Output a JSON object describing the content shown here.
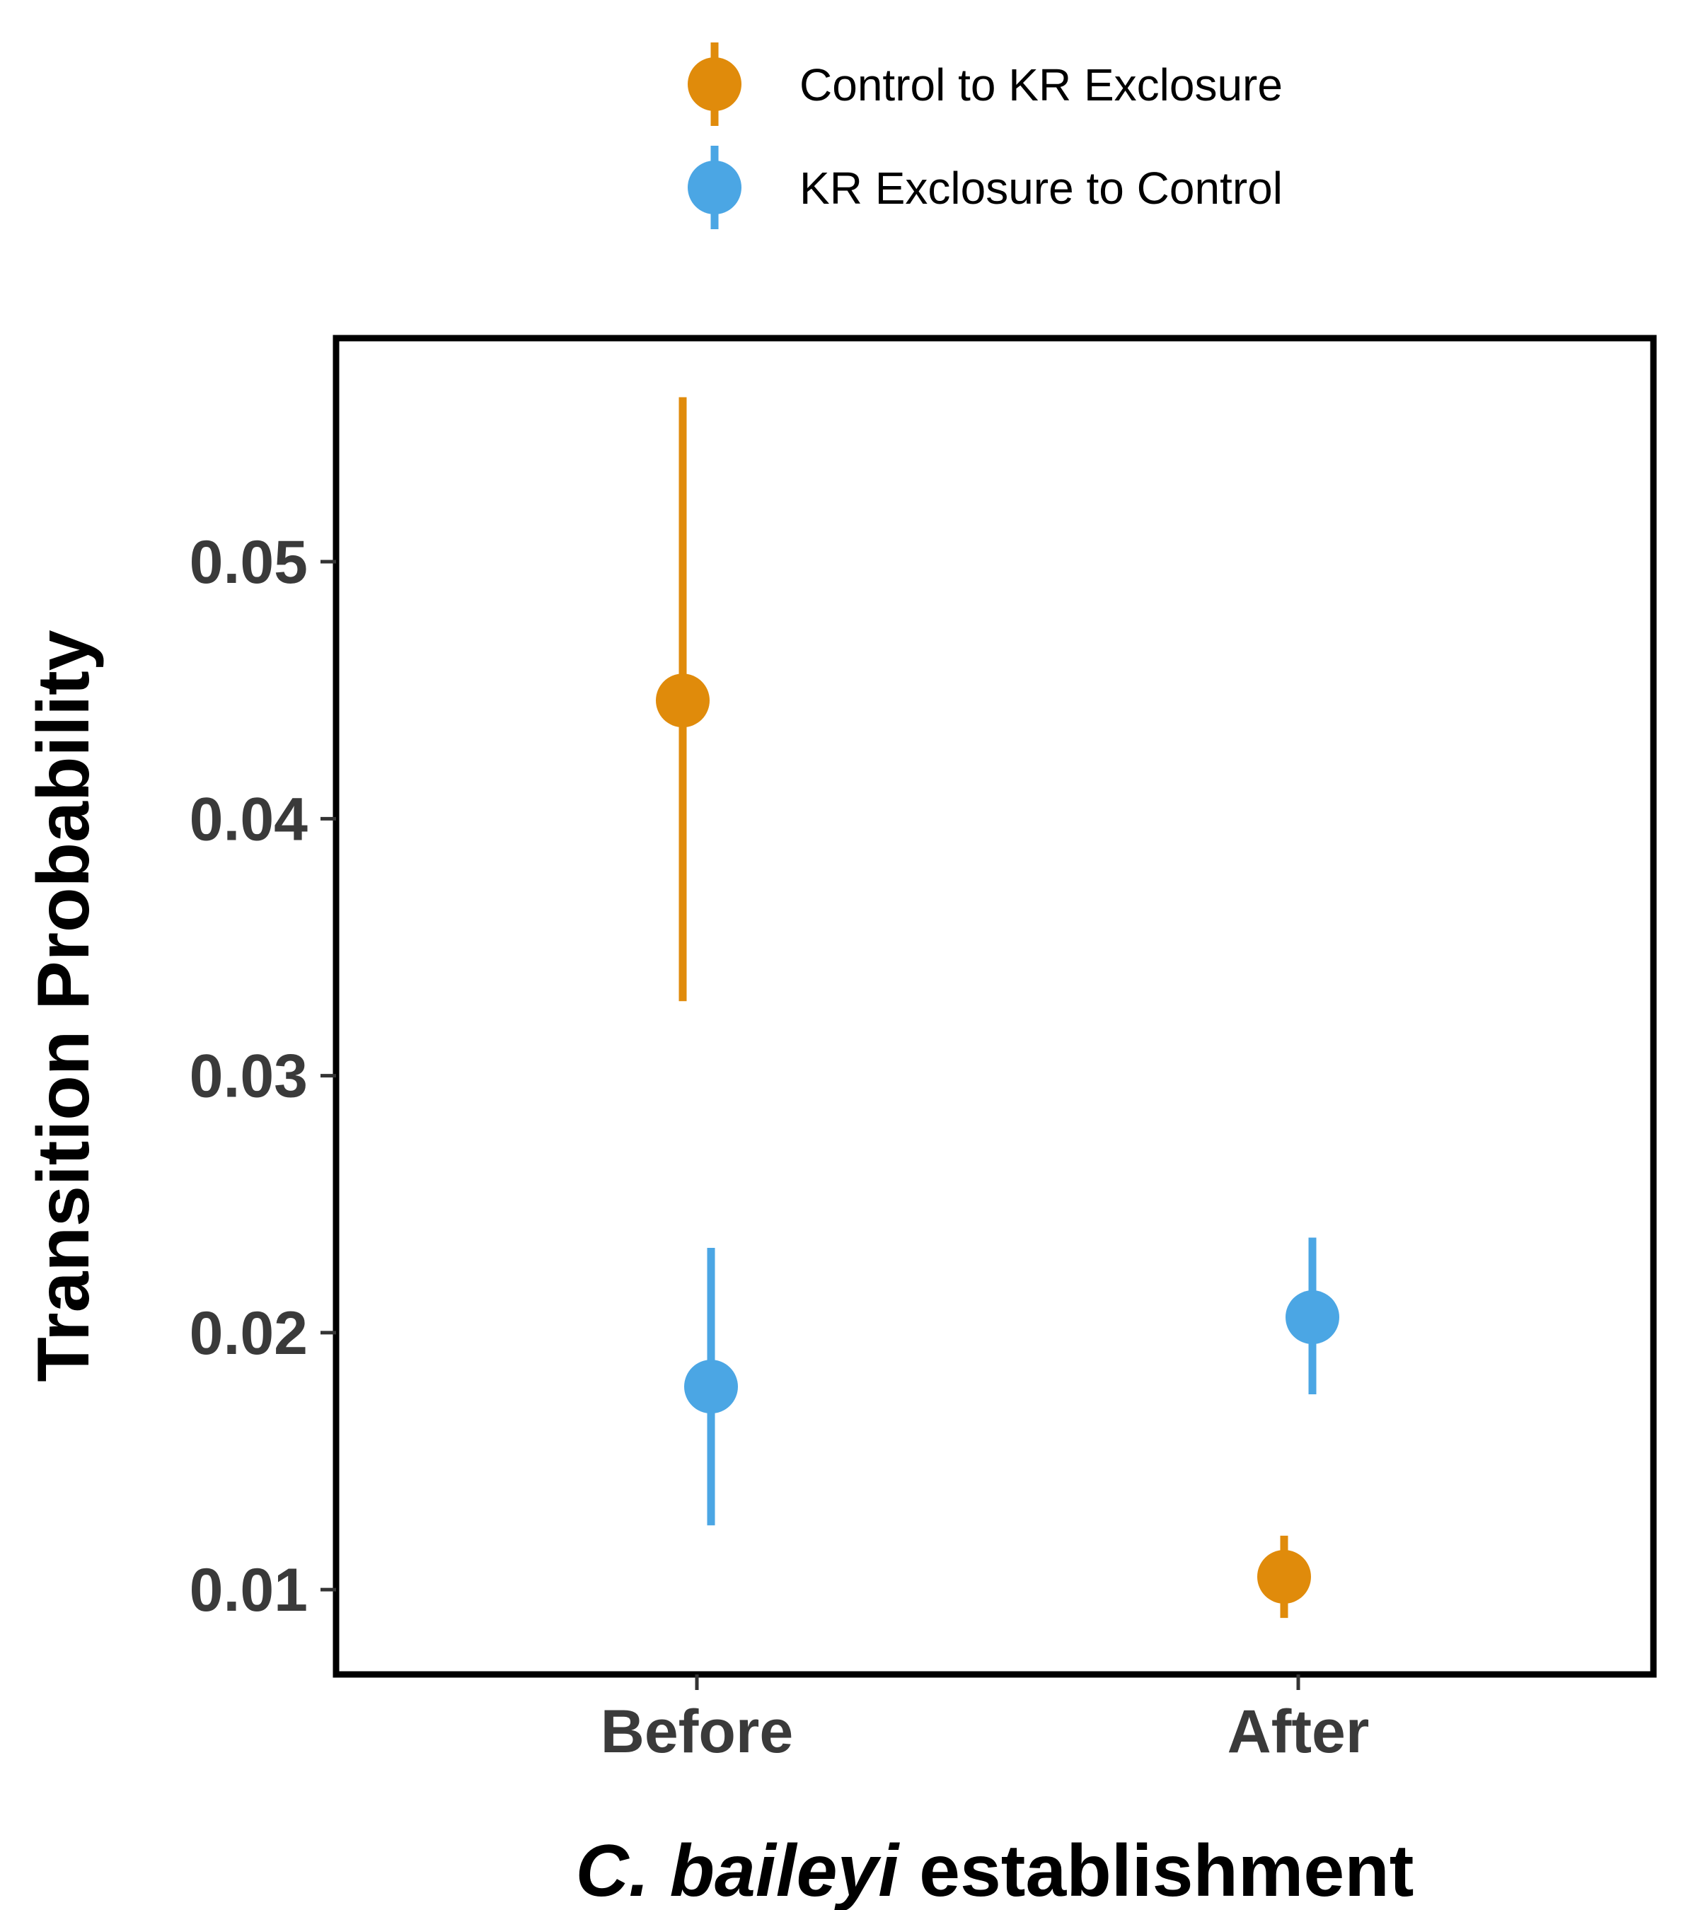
{
  "chart_data": {
    "type": "scatter",
    "title": "",
    "categories": [
      "Before",
      "After"
    ],
    "xlabel": {
      "italic": "C. baileyi",
      "rest": " establishment"
    },
    "ylabel": "Transition Probability",
    "ylim": [
      0.0067,
      0.0587
    ],
    "yticks": [
      "0.01",
      "0.02",
      "0.03",
      "0.04",
      "0.05"
    ],
    "legend_position": "top",
    "series": [
      {
        "name": "Control to KR Exclosure",
        "color": "#E08B0B",
        "points": [
          {
            "category": "Before",
            "y": 0.0446,
            "lower": 0.0329,
            "upper": 0.0564
          },
          {
            "category": "After",
            "y": 0.0105,
            "lower": 0.0089,
            "upper": 0.0121
          }
        ]
      },
      {
        "name": "KR Exclosure to Control",
        "color": "#4BA6E4",
        "points": [
          {
            "category": "Before",
            "y": 0.0179,
            "lower": 0.0125,
            "upper": 0.0233
          },
          {
            "category": "After",
            "y": 0.0206,
            "lower": 0.0176,
            "upper": 0.0237
          }
        ]
      }
    ]
  }
}
